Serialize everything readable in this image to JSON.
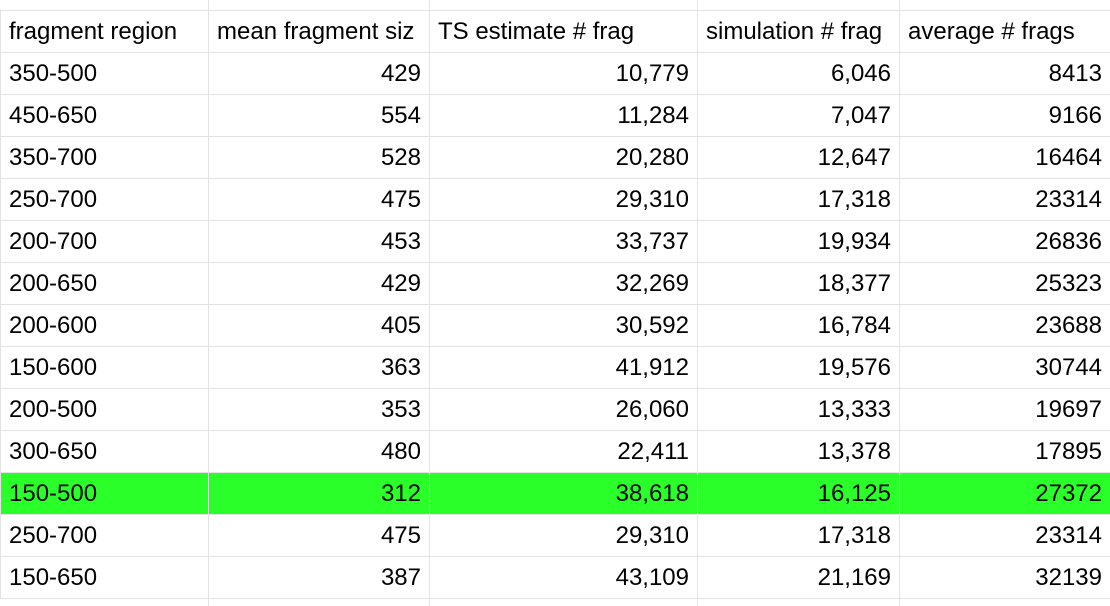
{
  "sheet": {
    "highlight_color": "#2aff2a",
    "gridline_color": "#e2e3e3",
    "header": [
      "fragment region",
      "mean fragment siz",
      "TS estimate # frag",
      "simulation # frag",
      "average # frags"
    ],
    "rows": [
      {
        "region": "350-500",
        "mean_size": "429",
        "ts_estimate": "10,779",
        "simulation": "6,046",
        "average": "8413",
        "highlighted": false
      },
      {
        "region": "450-650",
        "mean_size": "554",
        "ts_estimate": "11,284",
        "simulation": "7,047",
        "average": "9166",
        "highlighted": false
      },
      {
        "region": "350-700",
        "mean_size": "528",
        "ts_estimate": "20,280",
        "simulation": "12,647",
        "average": "16464",
        "highlighted": false
      },
      {
        "region": "250-700",
        "mean_size": "475",
        "ts_estimate": "29,310",
        "simulation": "17,318",
        "average": "23314",
        "highlighted": false
      },
      {
        "region": "200-700",
        "mean_size": "453",
        "ts_estimate": "33,737",
        "simulation": "19,934",
        "average": "26836",
        "highlighted": false
      },
      {
        "region": "200-650",
        "mean_size": "429",
        "ts_estimate": "32,269",
        "simulation": "18,377",
        "average": "25323",
        "highlighted": false
      },
      {
        "region": "200-600",
        "mean_size": "405",
        "ts_estimate": "30,592",
        "simulation": "16,784",
        "average": "23688",
        "highlighted": false
      },
      {
        "region": "150-600",
        "mean_size": "363",
        "ts_estimate": "41,912",
        "simulation": "19,576",
        "average": "30744",
        "highlighted": false
      },
      {
        "region": "200-500",
        "mean_size": "353",
        "ts_estimate": "26,060",
        "simulation": "13,333",
        "average": "19697",
        "highlighted": false
      },
      {
        "region": "300-650",
        "mean_size": "480",
        "ts_estimate": "22,411",
        "simulation": "13,378",
        "average": "17895",
        "highlighted": false
      },
      {
        "region": "150-500",
        "mean_size": "312",
        "ts_estimate": "38,618",
        "simulation": "16,125",
        "average": "27372",
        "highlighted": true
      },
      {
        "region": "250-700",
        "mean_size": "475",
        "ts_estimate": "29,310",
        "simulation": "17,318",
        "average": "23314",
        "highlighted": false
      },
      {
        "region": "150-650",
        "mean_size": "387",
        "ts_estimate": "43,109",
        "simulation": "21,169",
        "average": "32139",
        "highlighted": false
      }
    ]
  }
}
